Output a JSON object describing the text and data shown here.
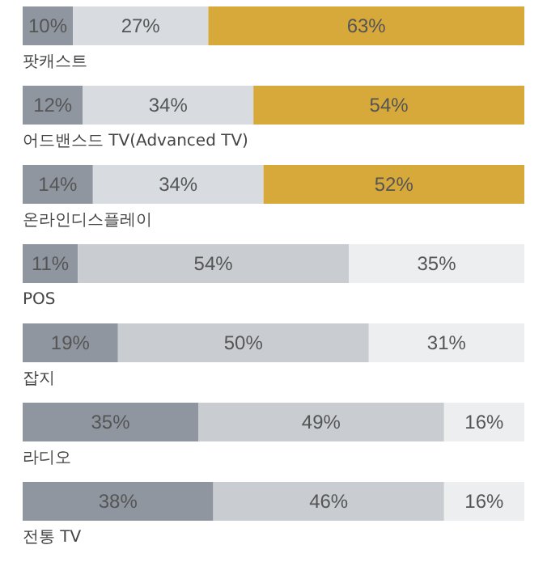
{
  "chart_data": {
    "type": "bar",
    "orientation": "horizontal",
    "stacked": true,
    "xlim": [
      0,
      100
    ],
    "categories": [
      "팟캐스트",
      "어드밴스드 TV(Advanced TV)",
      "온라인디스플레이",
      "POS",
      "잡지",
      "라디오",
      "전통 TV"
    ],
    "series": [
      {
        "colors": [
          "#8f96a0",
          "#8f96a0",
          "#8f96a0",
          "#8f96a0",
          "#8f96a0",
          "#8f96a0",
          "#8f96a0"
        ],
        "values": [
          10,
          12,
          14,
          11,
          19,
          35,
          38
        ],
        "value_labels": [
          "10%",
          "12%",
          "14%",
          "11%",
          "19%",
          "35%",
          "38%"
        ]
      },
      {
        "colors": [
          "#d8dce0",
          "#d8dce0",
          "#d8dce0",
          "#c9cdd1",
          "#c9cdd1",
          "#c9cdd1",
          "#c9cdd1"
        ],
        "values": [
          27,
          34,
          34,
          54,
          50,
          49,
          46
        ],
        "value_labels": [
          "27%",
          "34%",
          "34%",
          "54%",
          "50%",
          "49%",
          "46%"
        ]
      },
      {
        "colors": [
          "#d6a93a",
          "#d6a93a",
          "#d6a93a",
          "#eceef0",
          "#eceef0",
          "#eceef0",
          "#eceef0"
        ],
        "values": [
          63,
          54,
          52,
          35,
          31,
          16,
          16
        ],
        "value_labels": [
          "63%",
          "54%",
          "52%",
          "35%",
          "31%",
          "16%",
          "16%"
        ]
      }
    ]
  }
}
